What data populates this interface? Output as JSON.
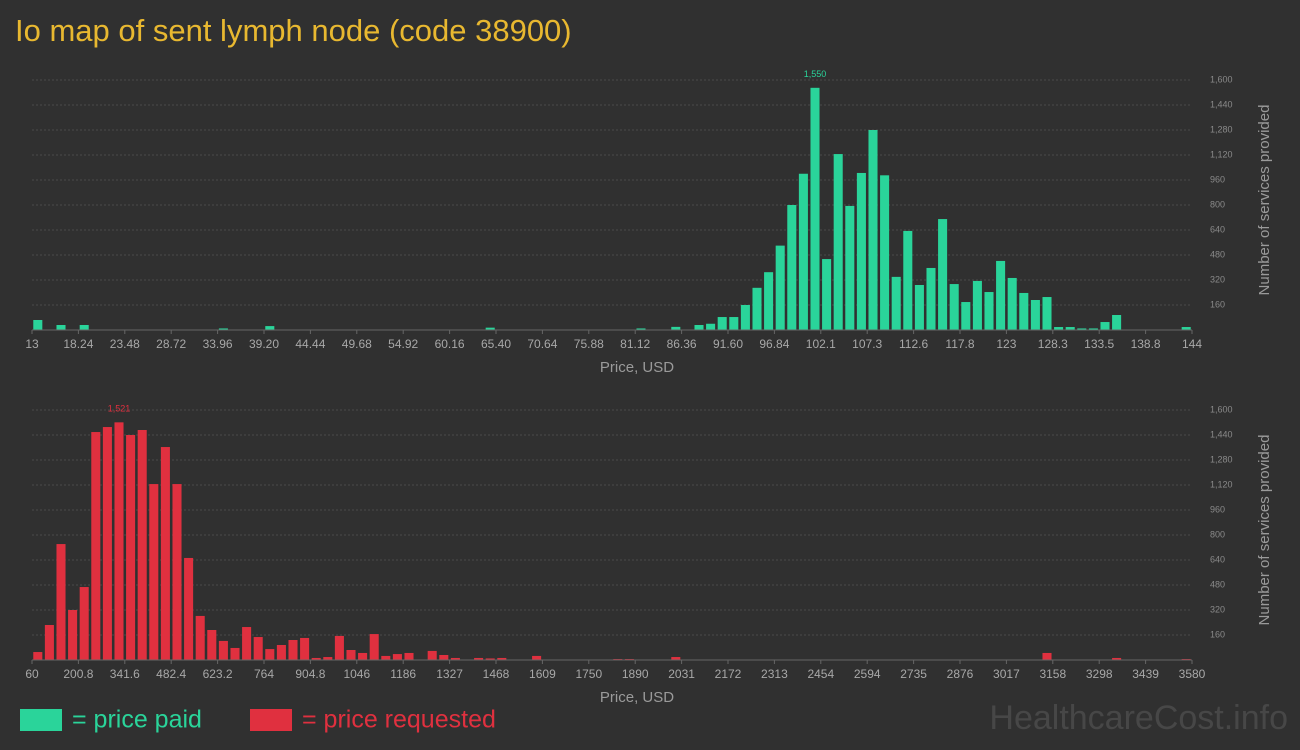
{
  "title": "Io map of sent lymph node (code 38900)",
  "watermark": "HealthcareCost.info",
  "chart_data": [
    {
      "type": "histogram",
      "name": "= price paid",
      "color": "#2ad49a",
      "xlabel": "Price, USD",
      "ylabel": "Number of services provided",
      "bins": [
        13,
        14.31,
        15.62,
        16.93,
        18.24,
        19.55,
        20.86,
        22.17,
        23.48,
        24.79,
        26.1,
        27.41,
        28.72,
        30.03,
        31.34,
        32.65,
        33.96,
        35.27,
        36.58,
        37.89,
        39.2,
        40.51,
        41.82,
        43.13,
        44.44,
        45.75,
        47.06,
        48.37,
        49.68,
        50.99,
        52.3,
        53.61,
        54.92,
        56.23,
        57.54,
        58.85,
        60.16,
        61.47,
        62.78,
        64.09,
        65.4,
        66.71,
        68.02,
        69.33,
        70.64,
        71.95,
        73.26,
        74.57,
        75.88,
        77.19,
        78.5,
        79.81,
        81.12,
        82.43,
        83.74,
        85.05,
        86.36,
        87.67,
        88.98,
        90.29,
        91.6,
        92.91,
        94.22,
        95.53,
        96.84,
        98.15,
        99.46,
        100.77,
        102.08,
        103.39,
        104.7,
        106.01,
        107.32,
        108.63,
        109.94,
        111.25,
        112.56,
        113.87,
        115.18,
        116.49,
        117.8,
        119.11,
        120.42,
        121.73,
        123.04,
        124.35,
        125.66,
        126.97,
        128.28,
        129.59,
        130.9,
        132.21,
        133.52,
        134.83,
        136.14,
        137.45,
        138.76,
        140.07,
        141.38,
        142.69,
        144
      ],
      "values": [
        64,
        0,
        32,
        0,
        32,
        0,
        0,
        0,
        0,
        0,
        0,
        0,
        0,
        0,
        0,
        0,
        10,
        0,
        0,
        0,
        25,
        0,
        0,
        0,
        0,
        0,
        0,
        0,
        0,
        0,
        0,
        0,
        0,
        0,
        0,
        0,
        0,
        0,
        0,
        15,
        0,
        0,
        0,
        0,
        0,
        0,
        0,
        0,
        0,
        0,
        0,
        0,
        10,
        0,
        0,
        20,
        0,
        32,
        40,
        83,
        83,
        160,
        270,
        370,
        540,
        800,
        1000,
        1550,
        454,
        1126,
        794,
        1005,
        1280,
        990,
        340,
        634,
        288,
        397,
        710,
        294,
        179,
        314,
        243,
        442,
        333,
        237,
        192,
        211,
        19,
        19,
        10,
        10,
        51,
        96,
        0,
        0,
        0,
        0,
        0,
        19
      ],
      "value_labels": [
        null,
        null,
        null,
        null,
        null,
        null,
        null,
        null,
        null,
        null,
        null,
        null,
        null,
        null,
        null,
        null,
        null,
        null,
        null,
        null,
        null,
        null,
        null,
        null,
        null,
        null,
        null,
        null,
        null,
        null,
        null,
        null,
        null,
        null,
        null,
        null,
        null,
        null,
        null,
        null,
        null,
        null,
        null,
        null,
        null,
        null,
        null,
        null,
        null,
        null,
        null,
        null,
        null,
        null,
        null,
        null,
        null,
        null,
        null,
        null,
        null,
        null,
        null,
        null,
        null,
        null,
        null,
        "1,550",
        null,
        null,
        null,
        null,
        null,
        null,
        null,
        null,
        null,
        null,
        null,
        null,
        null,
        null,
        null,
        null,
        null,
        null,
        null,
        null,
        null,
        null,
        null,
        null,
        null,
        null,
        null,
        null,
        null,
        null,
        null,
        null
      ],
      "xlim": [
        13,
        144
      ],
      "xticks": [
        13,
        18.24,
        23.48,
        28.72,
        33.96,
        {
          "value": 39.2,
          "label": "39.20"
        },
        44.44,
        49.68,
        54.92,
        60.16,
        {
          "value": 65.4,
          "label": "65.40"
        },
        70.64,
        75.88,
        81.12,
        86.36,
        {
          "value": 91.6,
          "label": "91.60"
        },
        96.84,
        {
          "value": 102.08,
          "label": "102.1"
        },
        {
          "value": 107.32,
          "label": "107.3"
        },
        {
          "value": 112.56,
          "label": "112.6"
        },
        117.8,
        {
          "value": 123.04,
          "label": "123"
        },
        {
          "value": 128.28,
          "label": "128.3"
        },
        {
          "value": 133.52,
          "label": "133.5"
        },
        {
          "value": 138.76,
          "label": "138.8"
        },
        144
      ],
      "ylim": [
        0,
        1760
      ],
      "yticks": [
        160,
        320,
        480,
        640,
        800,
        960,
        {
          "value": 1120,
          "label": "1,120"
        },
        {
          "value": 1280,
          "label": "1,280"
        },
        {
          "value": 1440,
          "label": "1,440"
        },
        {
          "value": 1600,
          "label": "1,600"
        }
      ],
      "grid": true
    },
    {
      "type": "histogram",
      "name": "= price requested",
      "color": "#e0303f",
      "xlabel": "Price, USD",
      "ylabel": "Number of services provided",
      "bins": [
        60,
        95.2,
        130.4,
        165.6,
        200.8,
        236,
        271.2,
        306.4,
        341.6,
        376.8,
        412,
        447.2,
        482.4,
        517.6,
        552.8,
        588,
        623.2,
        658.4,
        693.6,
        728.8,
        764,
        799.2,
        834.4,
        869.6,
        904.8,
        940,
        975.2,
        1010.4,
        1045.6,
        1080.8,
        1116,
        1151.2,
        1186.4,
        1221.6,
        1256.8,
        1292,
        1327.2,
        1362.4,
        1397.6,
        1432.8,
        1468,
        1503.2,
        1538.4,
        1573.6,
        1608.8,
        1644,
        1679.2,
        1714.4,
        1749.6,
        1784.8,
        1820,
        1855.2,
        1890.4,
        1925.6,
        1960.8,
        1996,
        2031.2,
        2066.4,
        2101.6,
        2136.8,
        2172,
        2207.2,
        2242.4,
        2277.6,
        2312.8,
        2348,
        2383.2,
        2418.4,
        2453.6,
        2488.8,
        2524,
        2559.2,
        2594.4,
        2629.6,
        2664.8,
        2700,
        2735.2,
        2770.4,
        2805.6,
        2840.8,
        2876,
        2911.2,
        2946.4,
        2981.6,
        3016.8,
        3052,
        3087.2,
        3122.4,
        3157.6,
        3192.8,
        3228,
        3263.2,
        3298.4,
        3333.6,
        3368.8,
        3404,
        3439.2,
        3474.4,
        3509.6,
        3544.8,
        3580
      ],
      "values": [
        51,
        224,
        742,
        320,
        467,
        1459,
        1491,
        1521,
        1440,
        1472,
        1126,
        1363,
        1126,
        653,
        282,
        192,
        122,
        77,
        211,
        147,
        70,
        96,
        128,
        141,
        13,
        19,
        154,
        64,
        45,
        166,
        26,
        38,
        45,
        0,
        58,
        32,
        13,
        0,
        13,
        10,
        13,
        0,
        0,
        26,
        0,
        0,
        0,
        0,
        0,
        0,
        6,
        6,
        0,
        0,
        0,
        19,
        0,
        0,
        0,
        0,
        0,
        0,
        0,
        0,
        0,
        0,
        0,
        0,
        0,
        0,
        0,
        0,
        0,
        0,
        0,
        0,
        0,
        0,
        0,
        0,
        0,
        0,
        0,
        0,
        0,
        0,
        0,
        45,
        0,
        0,
        0,
        0,
        0,
        13,
        0,
        0,
        0,
        0,
        0,
        6
      ],
      "value_labels": [
        null,
        null,
        null,
        null,
        null,
        null,
        null,
        "1,521",
        null,
        null,
        null,
        null,
        null,
        null,
        null,
        null,
        null,
        null,
        null,
        null,
        null,
        null,
        null,
        null,
        null,
        null,
        null,
        null,
        null,
        null,
        null,
        null,
        null,
        null,
        null,
        null,
        null,
        null,
        null,
        null,
        null,
        null,
        null,
        null,
        null,
        null,
        null,
        null,
        null,
        null,
        null,
        null,
        null,
        null,
        null,
        null,
        null,
        null,
        null,
        null,
        null,
        null,
        null,
        null,
        null,
        null,
        null,
        null,
        null,
        null,
        null,
        null,
        null,
        null,
        null,
        null,
        null,
        null,
        null,
        null,
        null,
        null,
        null,
        null,
        null,
        null,
        null,
        null,
        null,
        null,
        null,
        null,
        null,
        null,
        null,
        null,
        null,
        null,
        null,
        null
      ],
      "xlim": [
        60,
        3580
      ],
      "xticks": [
        60,
        200.8,
        341.6,
        482.4,
        623.2,
        764,
        904.8,
        {
          "value": 1045.6,
          "label": "1046"
        },
        {
          "value": 1186.4,
          "label": "1186"
        },
        {
          "value": 1327.2,
          "label": "1327"
        },
        1468,
        {
          "value": 1608.8,
          "label": "1609"
        },
        {
          "value": 1749.6,
          "label": "1750"
        },
        {
          "value": 1890.4,
          "label": "1890"
        },
        {
          "value": 2031.2,
          "label": "2031"
        },
        2172,
        {
          "value": 2312.8,
          "label": "2313"
        },
        {
          "value": 2453.6,
          "label": "2454"
        },
        {
          "value": 2594.4,
          "label": "2594"
        },
        {
          "value": 2735.2,
          "label": "2735"
        },
        2876,
        {
          "value": 3016.8,
          "label": "3017"
        },
        {
          "value": 3157.6,
          "label": "3158"
        },
        {
          "value": 3298.4,
          "label": "3298"
        },
        {
          "value": 3439.2,
          "label": "3439"
        },
        3580
      ],
      "ylim": [
        0,
        1760
      ],
      "yticks": [
        160,
        320,
        480,
        640,
        800,
        960,
        {
          "value": 1120,
          "label": "1,120"
        },
        {
          "value": 1280,
          "label": "1,280"
        },
        {
          "value": 1440,
          "label": "1,440"
        },
        {
          "value": 1600,
          "label": "1,600"
        }
      ],
      "grid": true
    }
  ]
}
